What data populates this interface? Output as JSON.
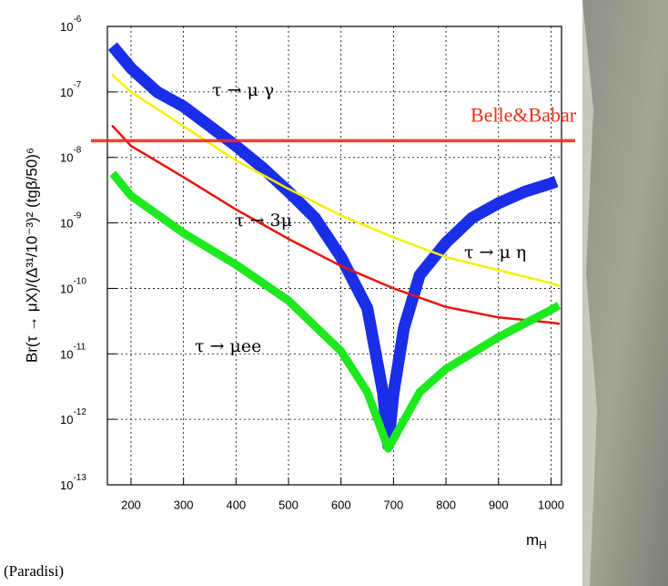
{
  "chart_data": {
    "type": "line",
    "y_label": "Br(τ → μX)/(Δ³¹/10⁻³)² (tgβ/50)⁶",
    "x_label": "m",
    "x_label_sub": "H",
    "source": "(Paradisi)",
    "xlim": [
      155,
      1020
    ],
    "xticks": [
      200,
      300,
      400,
      500,
      600,
      700,
      800,
      900,
      1000
    ],
    "ylim": [
      1e-13,
      1e-06
    ],
    "log_y": true,
    "grid": true,
    "yticks": [
      {
        "value": 1e-06,
        "label": "10",
        "exponent": "-6"
      },
      {
        "value": 1e-07,
        "label": "10",
        "exponent": "-7"
      },
      {
        "value": 1e-08,
        "label": "10",
        "exponent": "-8"
      },
      {
        "value": 1e-09,
        "label": "10",
        "exponent": "-9"
      },
      {
        "value": 1e-10,
        "label": "10",
        "exponent": "-10"
      },
      {
        "value": 1e-11,
        "label": "10",
        "exponent": "-11"
      },
      {
        "value": 1e-12,
        "label": "10",
        "exponent": "-12"
      },
      {
        "value": 1e-13,
        "label": "10",
        "exponent": "-13"
      }
    ],
    "series": [
      {
        "name": "τ → μ γ",
        "color": "#1a2ee8",
        "style": "band",
        "x": [
          165,
          200,
          250,
          300,
          350,
          400,
          450,
          500,
          550,
          600,
          650,
          680,
          690,
          700,
          720,
          750,
          800,
          850,
          900,
          950,
          1000,
          1010
        ],
        "values": [
          5e-07,
          2.3e-07,
          1e-07,
          6e-08,
          3e-08,
          1.5e-08,
          7e-09,
          3e-09,
          1.2e-09,
          3e-10,
          5e-11,
          2.5e-12,
          4e-13,
          2.5e-12,
          2.5e-11,
          1.6e-10,
          5e-10,
          1.2e-09,
          2e-09,
          3e-09,
          4e-09,
          4.3e-09
        ]
      },
      {
        "name": "τ → μ η",
        "color": "#f5f000",
        "style": "line",
        "x": [
          165,
          200,
          300,
          400,
          500,
          600,
          700,
          800,
          900,
          1000,
          1015
        ],
        "values": [
          1.8e-07,
          1e-07,
          3e-08,
          9e-09,
          3.3e-09,
          1.3e-09,
          6e-10,
          3e-10,
          1.9e-10,
          1.2e-10,
          1.1e-10
        ]
      },
      {
        "name": "τ → 3μ",
        "color": "#e8140c",
        "style": "line",
        "x": [
          165,
          200,
          300,
          400,
          500,
          600,
          700,
          800,
          900,
          1000,
          1015
        ],
        "values": [
          3e-08,
          1.5e-08,
          5e-09,
          1.6e-09,
          5.7e-10,
          2.2e-10,
          1e-10,
          5.2e-11,
          3.6e-11,
          3e-11,
          2.9e-11
        ]
      },
      {
        "name": "τ → μee",
        "color": "#1ee81e",
        "style": "band",
        "x": [
          165,
          200,
          300,
          400,
          500,
          600,
          650,
          690,
          700,
          750,
          800,
          900,
          1000,
          1015
        ],
        "values": [
          5.7e-09,
          2.6e-09,
          7e-10,
          2.3e-10,
          6.5e-11,
          1.1e-11,
          2.6e-12,
          3.6e-13,
          5e-13,
          2.6e-12,
          5.9e-12,
          1.8e-11,
          4.7e-11,
          5.5e-11
        ]
      }
    ],
    "limit": {
      "label": "Belle&Babar",
      "value": 1.8e-08,
      "color": "#e8301c"
    }
  }
}
